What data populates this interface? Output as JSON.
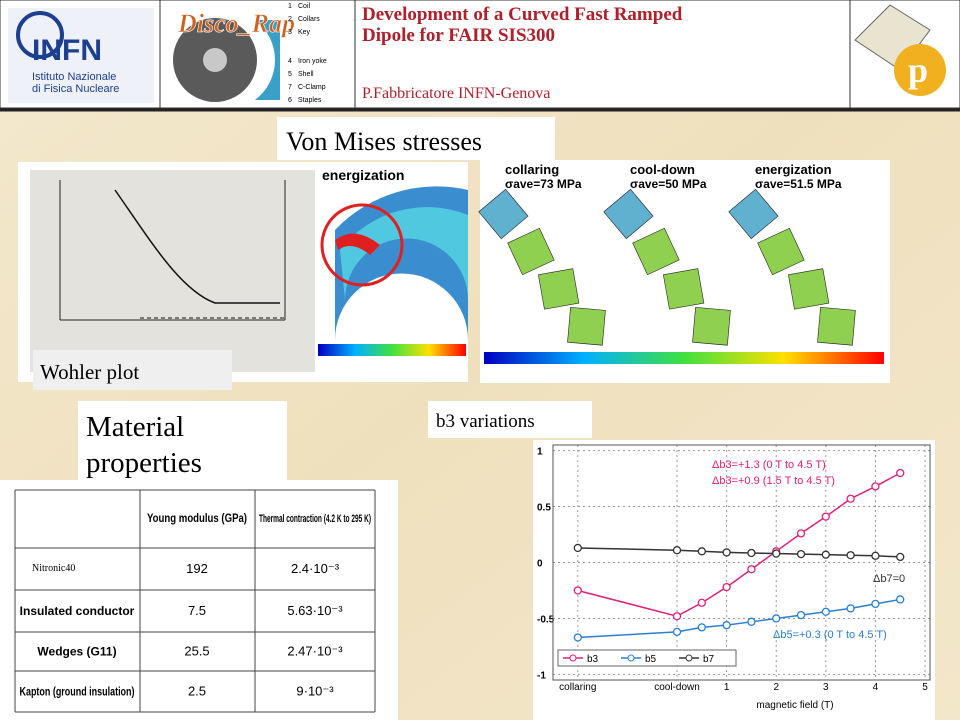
{
  "header": {
    "title": [
      "Development of a Curved Fast Ramped",
      "Dipole for FAIR SIS300"
    ],
    "author": "P.Fabbricatore INFN-Genova",
    "logo_left": "INFN",
    "logo_left_sub": [
      "Istituto Nazionale",
      "di Fisica Nucleare"
    ],
    "logo_mid": "Disco_Rap",
    "logo_mid_legend": [
      {
        "n": 1,
        "label": "Coil"
      },
      {
        "n": 2,
        "label": "Collars"
      },
      {
        "n": 3,
        "label": "Key"
      },
      {
        "n": 4,
        "label": "Iron yoke"
      },
      {
        "n": 5,
        "label": "Shell"
      },
      {
        "n": 7,
        "label": "C-Clamp"
      },
      {
        "n": 6,
        "label": "Staples"
      }
    ]
  },
  "sections": {
    "von_mises": "Von Mises stresses",
    "wohler": "Wohler plot",
    "material": [
      "Material",
      "properties"
    ],
    "b3": "b3 variations"
  },
  "fem": {
    "single": "energization",
    "panels": [
      {
        "label": "collaring",
        "stress": "σave=73 MPa"
      },
      {
        "label": "cool-down",
        "stress": "σave=50 MPa"
      },
      {
        "label": "energization",
        "stress": "σave=51.5 MPa"
      }
    ]
  },
  "table": {
    "header": [
      "Young modulus (GPa)",
      "Thermal contraction (4.2 K to 295 K)"
    ],
    "rows": [
      {
        "name": "Nitronic40",
        "young": 192,
        "thermal": "2.4·10⁻³"
      },
      {
        "name": "Insulated conductor",
        "young": 7.5,
        "thermal": "5.63·10⁻³"
      },
      {
        "name": "Wedges (G11)",
        "young": 25.5,
        "thermal": "2.47·10⁻³"
      },
      {
        "name": "Kapton (ground insulation)",
        "young": 2.5,
        "thermal": "9·10⁻³"
      }
    ]
  },
  "chart_data": {
    "type": "line",
    "x_label": "magnetic field (T)",
    "x": [
      -2,
      0,
      0.5,
      1,
      1.5,
      2,
      2.5,
      3,
      3.5,
      4,
      4.5
    ],
    "xlim": [
      -2.5,
      5.1
    ],
    "xticks": [
      {
        "value": -2,
        "label": "collaring"
      },
      {
        "value": 0,
        "label": "cool-down"
      },
      1,
      2,
      3,
      4,
      5
    ],
    "ylim": [
      -1.05,
      1.05
    ],
    "yticks": [
      -1,
      -0.5,
      0,
      0.5,
      1
    ],
    "grid": true,
    "series": [
      {
        "name": "b3",
        "color": "#e0207a",
        "values": [
          -0.25,
          -0.48,
          -0.36,
          -0.22,
          -0.06,
          0.1,
          0.26,
          0.41,
          0.57,
          0.68,
          0.8
        ]
      },
      {
        "name": "b5",
        "color": "#2a7fd0",
        "values": [
          -0.67,
          -0.62,
          -0.58,
          -0.56,
          -0.53,
          -0.5,
          -0.47,
          -0.44,
          -0.41,
          -0.37,
          -0.33
        ]
      },
      {
        "name": "b7",
        "color": "#333333",
        "values": [
          0.13,
          0.11,
          0.1,
          0.09,
          0.085,
          0.08,
          0.075,
          0.07,
          0.065,
          0.06,
          0.05
        ]
      }
    ],
    "annotations": [
      {
        "text": "Δb3=+1.3 (0 T to 4.5 T)",
        "color": "#e0207a"
      },
      {
        "text": "Δb3=+0.9 (1.5 T to 4.5 T)",
        "color": "#e0207a"
      },
      {
        "text": "Δb7=0",
        "color": "#333333"
      },
      {
        "text": "Δb5=+0.3 (0 T to 4.5 T)",
        "color": "#2a7fd0"
      }
    ]
  }
}
